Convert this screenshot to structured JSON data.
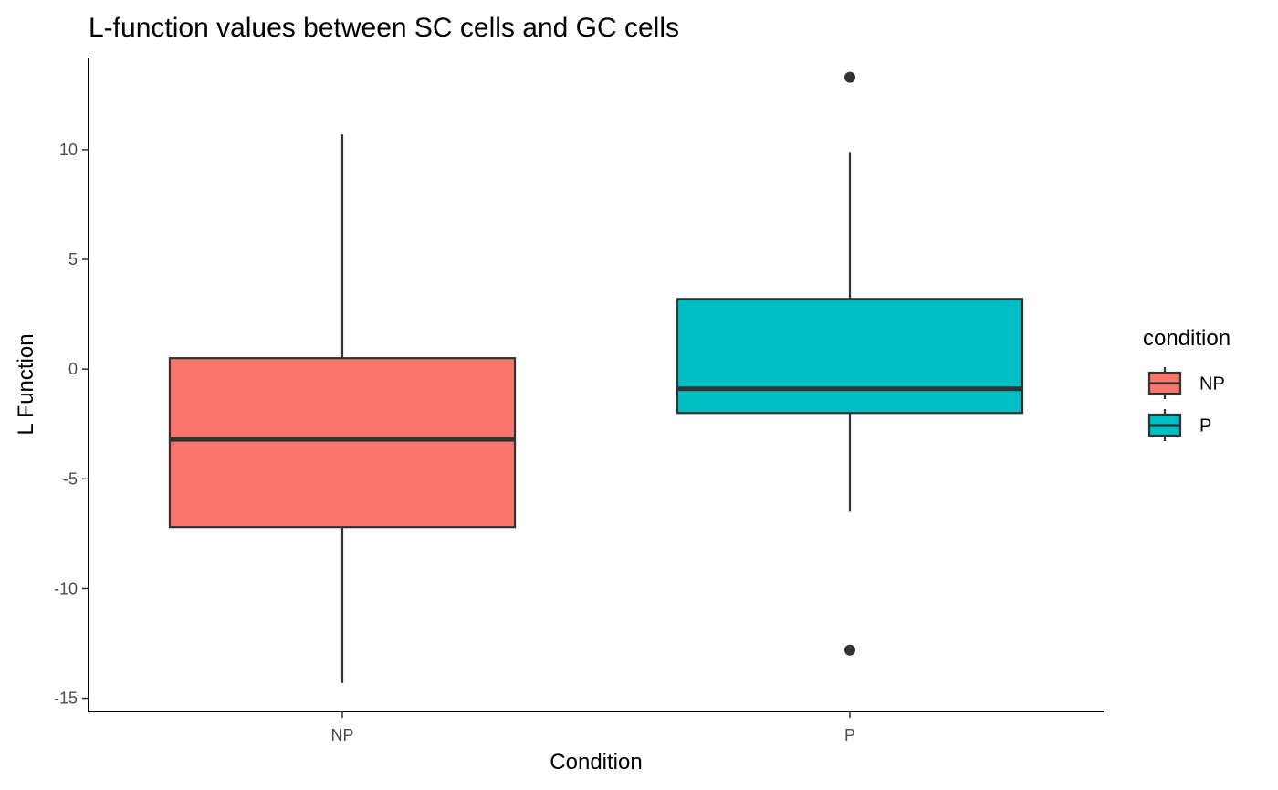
{
  "chart_data": {
    "type": "boxplot",
    "title": "L-function values between SC cells and GC cells",
    "xlabel": "Condition",
    "ylabel": "L Function",
    "ylim": [
      -15.6,
      14.2
    ],
    "yticks": [
      10,
      5,
      0,
      -5,
      -10,
      -15
    ],
    "grid": false,
    "legend": {
      "title": "condition",
      "placement": "right",
      "entries": [
        "NP",
        "P"
      ]
    },
    "categories": [
      "NP",
      "P"
    ],
    "series": [
      {
        "name": "NP",
        "color": "#F8766D",
        "min": -14.3,
        "q1": -7.2,
        "median": -3.2,
        "q3": 0.5,
        "max": 10.7,
        "outliers": []
      },
      {
        "name": "P",
        "color": "#00BFC4",
        "min": -6.5,
        "q1": -2.0,
        "median": -0.9,
        "q3": 3.2,
        "max": 9.9,
        "outliers": [
          13.3,
          -12.8
        ]
      }
    ]
  }
}
